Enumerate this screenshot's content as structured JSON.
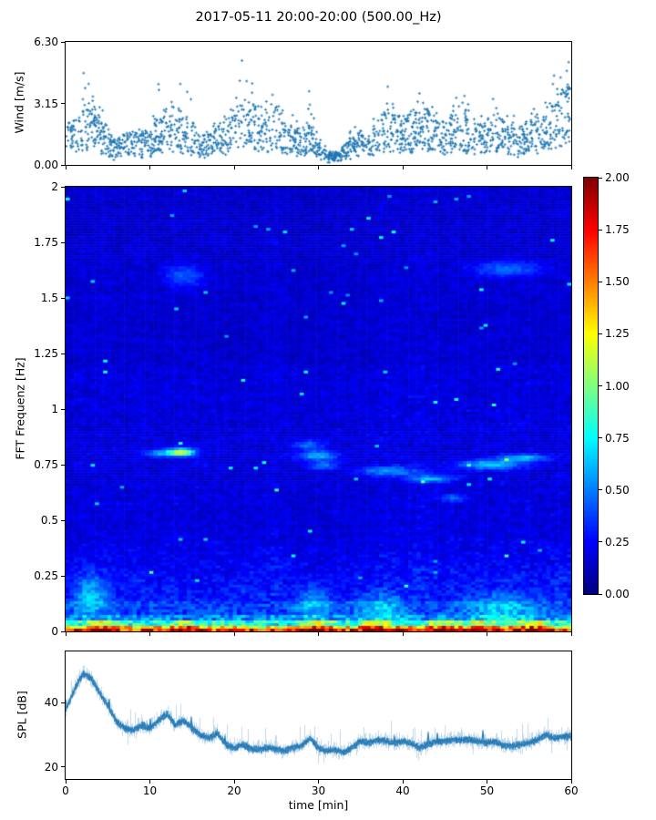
{
  "title": "2017-05-11 20:00-20:00 (500.00_Hz)",
  "colors": {
    "series_blue": "#1f77b4",
    "axis": "#000000",
    "background": "#ffffff"
  },
  "x_axis": {
    "label": "time [min]",
    "lim": [
      0,
      60
    ],
    "ticks": [
      {
        "v": 0,
        "label": "0"
      },
      {
        "v": 10,
        "label": "10"
      },
      {
        "v": 20,
        "label": "20"
      },
      {
        "v": 30,
        "label": "30"
      },
      {
        "v": 40,
        "label": "40"
      },
      {
        "v": 50,
        "label": "50"
      },
      {
        "v": 60,
        "label": "60"
      }
    ]
  },
  "chart_data": [
    {
      "name": "wind",
      "type": "scatter",
      "marker": "plus",
      "marker_color": "#1f77b4",
      "ylabel": "Wind [m/s]",
      "ylim": [
        0,
        6.3
      ],
      "yticks": [
        {
          "v": 0.0,
          "label": "0.00"
        },
        {
          "v": 3.15,
          "label": "3.15"
        },
        {
          "v": 6.3,
          "label": "6.30"
        }
      ],
      "n_points": 1850,
      "mean_by_minute": [
        1.5,
        1.6,
        2.2,
        2.4,
        1.8,
        1.0,
        0.9,
        1.1,
        1.3,
        1.2,
        1.1,
        1.9,
        2.2,
        1.7,
        1.9,
        1.6,
        1.1,
        1.0,
        1.4,
        1.5,
        2.4,
        2.6,
        2.4,
        2.2,
        1.9,
        2.3,
        1.7,
        1.3,
        1.1,
        1.6,
        0.8,
        0.4,
        0.4,
        0.6,
        1.0,
        1.2,
        1.1,
        1.5,
        2.0,
        1.8,
        1.6,
        1.9,
        2.2,
        2.0,
        1.7,
        1.5,
        1.9,
        1.7,
        2.0,
        1.5,
        1.6,
        2.1,
        1.7,
        1.4,
        1.4,
        1.6,
        1.8,
        2.0,
        2.4,
        2.8,
        3.1
      ],
      "p95_by_minute": [
        2.2,
        2.5,
        5.0,
        4.9,
        4.3,
        1.8,
        1.5,
        1.8,
        1.9,
        1.8,
        2.0,
        4.7,
        4.5,
        3.0,
        4.6,
        3.2,
        1.9,
        1.7,
        2.4,
        2.7,
        4.4,
        6.3,
        4.5,
        4.4,
        3.4,
        4.2,
        3.2,
        2.4,
        2.2,
        4.0,
        1.5,
        0.9,
        0.8,
        1.2,
        1.7,
        2.0,
        1.9,
        2.6,
        4.7,
        3.0,
        2.8,
        3.2,
        4.5,
        3.6,
        2.9,
        2.7,
        3.3,
        3.8,
        3.4,
        2.6,
        2.9,
        4.5,
        3.0,
        2.5,
        2.4,
        2.8,
        3.0,
        3.4,
        4.8,
        5.5,
        5.4
      ]
    },
    {
      "name": "fft_spectrogram",
      "type": "heatmap",
      "cmap": "jet",
      "ylabel": "FFT Frequenz [Hz]",
      "ylim": [
        0,
        2
      ],
      "vlim": [
        0,
        2
      ],
      "yticks": [
        {
          "v": 0,
          "label": "0"
        },
        {
          "v": 0.25,
          "label": "0.25"
        },
        {
          "v": 0.5,
          "label": "0.5"
        },
        {
          "v": 0.75,
          "label": "0.75"
        },
        {
          "v": 1,
          "label": "1"
        },
        {
          "v": 1.25,
          "label": "1.25"
        },
        {
          "v": 1.5,
          "label": "1.5"
        },
        {
          "v": 1.75,
          "label": "1.75"
        },
        {
          "v": 2,
          "label": "2"
        }
      ],
      "base_level": 0.14,
      "features": [
        {
          "t": 13.6,
          "st": 1.1,
          "f": 0.805,
          "sf": 0.012,
          "amp": 1.05
        },
        {
          "t": 11.0,
          "st": 1.2,
          "f": 0.8,
          "sf": 0.01,
          "amp": 0.4
        },
        {
          "t": 29.8,
          "st": 1.6,
          "f": 0.79,
          "sf": 0.014,
          "amp": 0.5
        },
        {
          "t": 30.5,
          "st": 1.2,
          "f": 0.745,
          "sf": 0.012,
          "amp": 0.35
        },
        {
          "t": 38.5,
          "st": 2.4,
          "f": 0.72,
          "sf": 0.015,
          "amp": 0.4
        },
        {
          "t": 43.5,
          "st": 2.0,
          "f": 0.685,
          "sf": 0.012,
          "amp": 0.4
        },
        {
          "t": 50.5,
          "st": 2.6,
          "f": 0.75,
          "sf": 0.015,
          "amp": 0.45
        },
        {
          "t": 54.5,
          "st": 2.0,
          "f": 0.78,
          "sf": 0.012,
          "amp": 0.45
        },
        {
          "t": 13.8,
          "st": 1.6,
          "f": 1.6,
          "sf": 0.035,
          "amp": 0.28
        },
        {
          "t": 52.5,
          "st": 2.8,
          "f": 1.63,
          "sf": 0.025,
          "amp": 0.3
        },
        {
          "t": 28.8,
          "st": 1.4,
          "f": 0.84,
          "sf": 0.015,
          "amp": 0.3
        },
        {
          "t": 2.8,
          "st": 1.4,
          "f": 0.16,
          "sf": 0.06,
          "amp": 0.35
        },
        {
          "t": 29.5,
          "st": 1.5,
          "f": 0.13,
          "sf": 0.05,
          "amp": 0.3
        },
        {
          "t": 37.5,
          "st": 2.0,
          "f": 0.1,
          "sf": 0.05,
          "amp": 0.3
        },
        {
          "t": 52.0,
          "st": 3.0,
          "f": 0.1,
          "sf": 0.05,
          "amp": 0.3
        },
        {
          "t": 46.0,
          "st": 1.2,
          "f": 0.6,
          "sf": 0.012,
          "amp": 0.25
        }
      ],
      "bottom_hotspots_min": [
        4,
        14,
        30,
        37,
        44.5,
        49,
        56
      ],
      "colorbar": {
        "lim": [
          0,
          2
        ],
        "ticks": [
          {
            "v": 0.0,
            "label": "0.00"
          },
          {
            "v": 0.25,
            "label": "0.25"
          },
          {
            "v": 0.5,
            "label": "0.50"
          },
          {
            "v": 0.75,
            "label": "0.75"
          },
          {
            "v": 1.0,
            "label": "1.00"
          },
          {
            "v": 1.25,
            "label": "1.25"
          },
          {
            "v": 1.5,
            "label": "1.50"
          },
          {
            "v": 1.75,
            "label": "1.75"
          },
          {
            "v": 2.0,
            "label": "2.00"
          }
        ]
      }
    },
    {
      "name": "spl",
      "type": "line",
      "line_color": "#1f77b4",
      "ylabel": "SPL [dB]",
      "ylim": [
        16.3,
        55.8
      ],
      "yticks": [
        {
          "v": 20,
          "label": "20"
        },
        {
          "v": 40,
          "label": "40"
        }
      ],
      "mean_by_minute": [
        38,
        44,
        49,
        47.5,
        43,
        39,
        34,
        32,
        31.5,
        33,
        32,
        34.5,
        36.5,
        33,
        34.5,
        32,
        30,
        29,
        30.5,
        27,
        26,
        27,
        25.5,
        25.5,
        26,
        25.5,
        25,
        26,
        26.5,
        29,
        26,
        25,
        25.5,
        24.5,
        26,
        28,
        27.5,
        28.5,
        28,
        27.5,
        28,
        27.5,
        26,
        27,
        28,
        28,
        28.5,
        28.5,
        28.5,
        28,
        27.5,
        28,
        26.5,
        26.5,
        27,
        27.5,
        28.5,
        30,
        29,
        29.5,
        29.5
      ]
    }
  ]
}
